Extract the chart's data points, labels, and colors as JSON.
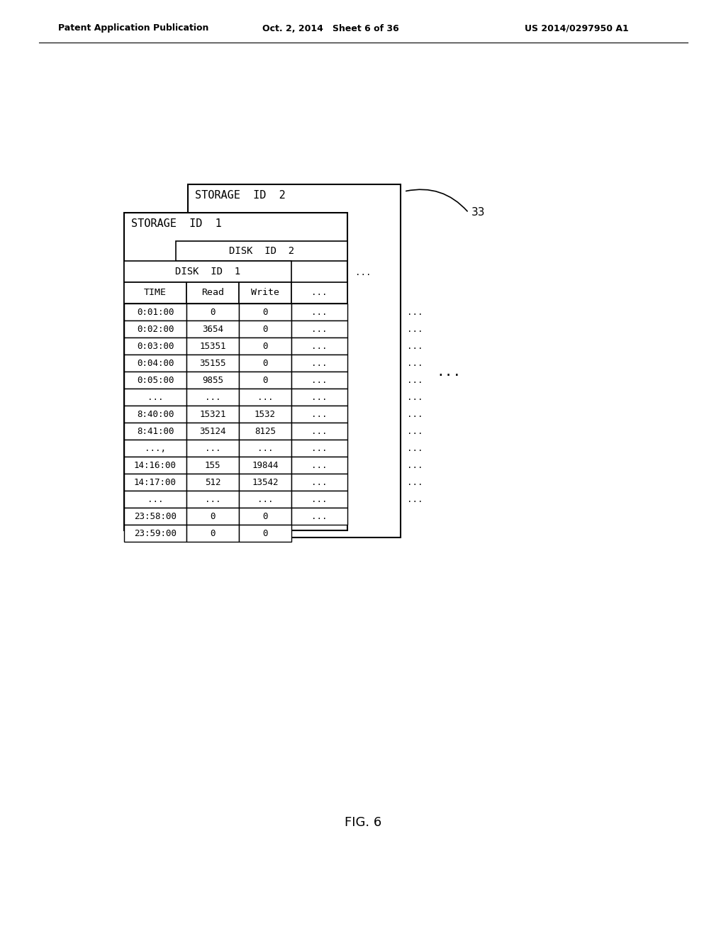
{
  "title": "FIG. 6",
  "patent_left": "Patent Application Publication",
  "patent_date": "Oct. 2, 2014   Sheet 6 of 36",
  "patent_num": "US 2014/0297950 A1",
  "storage_id2_label": "STORAGE  ID  2",
  "storage_id1_label": "STORAGE  ID  1",
  "disk_id2_label": "DISK  ID  2",
  "disk_id1_label": "DISK  ID  1",
  "ref_number": "33",
  "col_headers": [
    "TIME",
    "Read",
    "Write"
  ],
  "table_rows": [
    [
      "0:01:00",
      "0",
      "0"
    ],
    [
      "0:02:00",
      "3654",
      "0"
    ],
    [
      "0:03:00",
      "15351",
      "0"
    ],
    [
      "0:04:00",
      "35155",
      "0"
    ],
    [
      "0:05:00",
      "9855",
      "0"
    ],
    [
      "...",
      "...",
      "..."
    ],
    [
      "8:40:00",
      "15321",
      "1532"
    ],
    [
      "8:41:00",
      "35124",
      "8125"
    ],
    [
      "...,",
      "...",
      "..."
    ],
    [
      "14:16:00",
      "155",
      "19844"
    ],
    [
      "14:17:00",
      "512",
      "13542"
    ],
    [
      "...",
      "...",
      "..."
    ],
    [
      "23:58:00",
      "0",
      "0"
    ],
    [
      "23:59:00",
      "0",
      "0"
    ]
  ],
  "dots_col4": [
    true,
    true,
    true,
    true,
    true,
    true,
    true,
    true,
    true,
    true,
    true,
    true,
    true,
    false
  ],
  "outer_dots_right": "...",
  "outer_dots_right2": "...",
  "background_color": "#ffffff",
  "line_color": "#000000",
  "font_color": "#000000"
}
